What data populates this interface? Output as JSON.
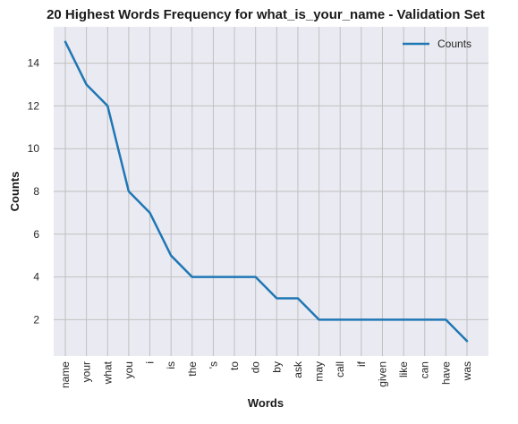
{
  "chart_data": {
    "type": "line",
    "title": "20 Highest Words Frequency for what_is_your_name - Validation Set",
    "xlabel": "Words",
    "ylabel": "Counts",
    "categories": [
      "name",
      "your",
      "what",
      "you",
      "i",
      "is",
      "the",
      "'s",
      "to",
      "do",
      "by",
      "ask",
      "may",
      "call",
      "if",
      "given",
      "like",
      "can",
      "have",
      "was"
    ],
    "series": [
      {
        "name": "Counts",
        "values": [
          15,
          13,
          12,
          8,
          7,
          5,
          4,
          4,
          4,
          4,
          3,
          3,
          2,
          2,
          2,
          2,
          2,
          2,
          2,
          1
        ],
        "color": "#1f77b4"
      }
    ],
    "yticks": [
      2,
      4,
      6,
      8,
      10,
      12,
      14
    ],
    "ylim": [
      0.3,
      15.7
    ],
    "grid": true,
    "legend_position": "top-right",
    "background_color": "#eaeaf2",
    "grid_color": "#c0c0c0"
  }
}
